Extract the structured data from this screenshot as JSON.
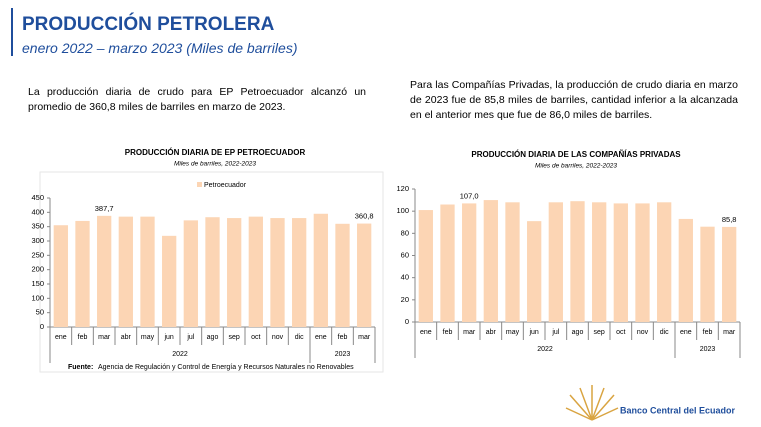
{
  "header": {
    "title": "PRODUCCIÓN PETROLERA",
    "subtitle": "enero 2022 –  marzo 2023 (Miles de barriles)"
  },
  "text_left": "La producción diaria de crudo para EP Petroecuador alcanzó un promedio de 360,8 miles de barriles en marzo de 2023.",
  "text_right": "Para las Compañías Privadas, la producción de crudo diaria en marzo de 2023 fue de 85,8 miles de barriles, cantidad inferior a la alcanzada en el anterior mes  que fue de 86,0 miles de barriles.",
  "source": {
    "label": "Fuente:",
    "text": "Agencia de Regulación y Control  de Energía y Recursos Naturales no Renovables"
  },
  "footer": {
    "bank": "Banco Central del Ecuador"
  },
  "chart_data": [
    {
      "type": "bar",
      "title": "PRODUCCIÓN DIARIA DE EP PETROECUADOR",
      "subtitle": "Miles de barriles, 2022-2023",
      "groups": [
        {
          "label": "2022",
          "categories": [
            "ene",
            "feb",
            "mar",
            "abr",
            "may",
            "jun",
            "jul",
            "ago",
            "sep",
            "oct",
            "nov",
            "dic"
          ]
        },
        {
          "label": "2023",
          "categories": [
            "ene",
            "feb",
            "mar"
          ]
        }
      ],
      "series": [
        {
          "name": "Petroecuador",
          "color": "#fcd5b4",
          "values": [
            355,
            370,
            387.7,
            385,
            385,
            318,
            372,
            383,
            380,
            385,
            380,
            380,
            395,
            360,
            360.8
          ],
          "value_labels": [
            null,
            null,
            "387,7",
            null,
            null,
            null,
            null,
            null,
            null,
            null,
            null,
            null,
            null,
            null,
            "360,8"
          ]
        }
      ],
      "ylim": [
        0,
        450
      ],
      "yticks": [
        0,
        50,
        100,
        150,
        200,
        250,
        300,
        350,
        400,
        450
      ],
      "legend": "top"
    },
    {
      "type": "bar",
      "title": "PRODUCCIÓN DIARIA DE LAS COMPAÑÍAS PRIVADAS",
      "subtitle": "Miles de barriles, 2022-2023",
      "groups": [
        {
          "label": "2022",
          "categories": [
            "ene",
            "feb",
            "mar",
            "abr",
            "may",
            "jun",
            "jul",
            "ago",
            "sep",
            "oct",
            "nov",
            "dic"
          ]
        },
        {
          "label": "2023",
          "categories": [
            "ene",
            "feb",
            "mar"
          ]
        }
      ],
      "series": [
        {
          "color": "#fcd5b4",
          "values": [
            101,
            106,
            107.0,
            110,
            108,
            91,
            108,
            109,
            108,
            107,
            107,
            108,
            93,
            86.0,
            85.8
          ],
          "value_labels": [
            null,
            null,
            "107,0",
            null,
            null,
            null,
            null,
            null,
            null,
            null,
            null,
            null,
            null,
            null,
            "85,8"
          ]
        }
      ],
      "ylim": [
        0,
        120
      ],
      "yticks": [
        0,
        20,
        40,
        60,
        80,
        100,
        120
      ]
    }
  ]
}
